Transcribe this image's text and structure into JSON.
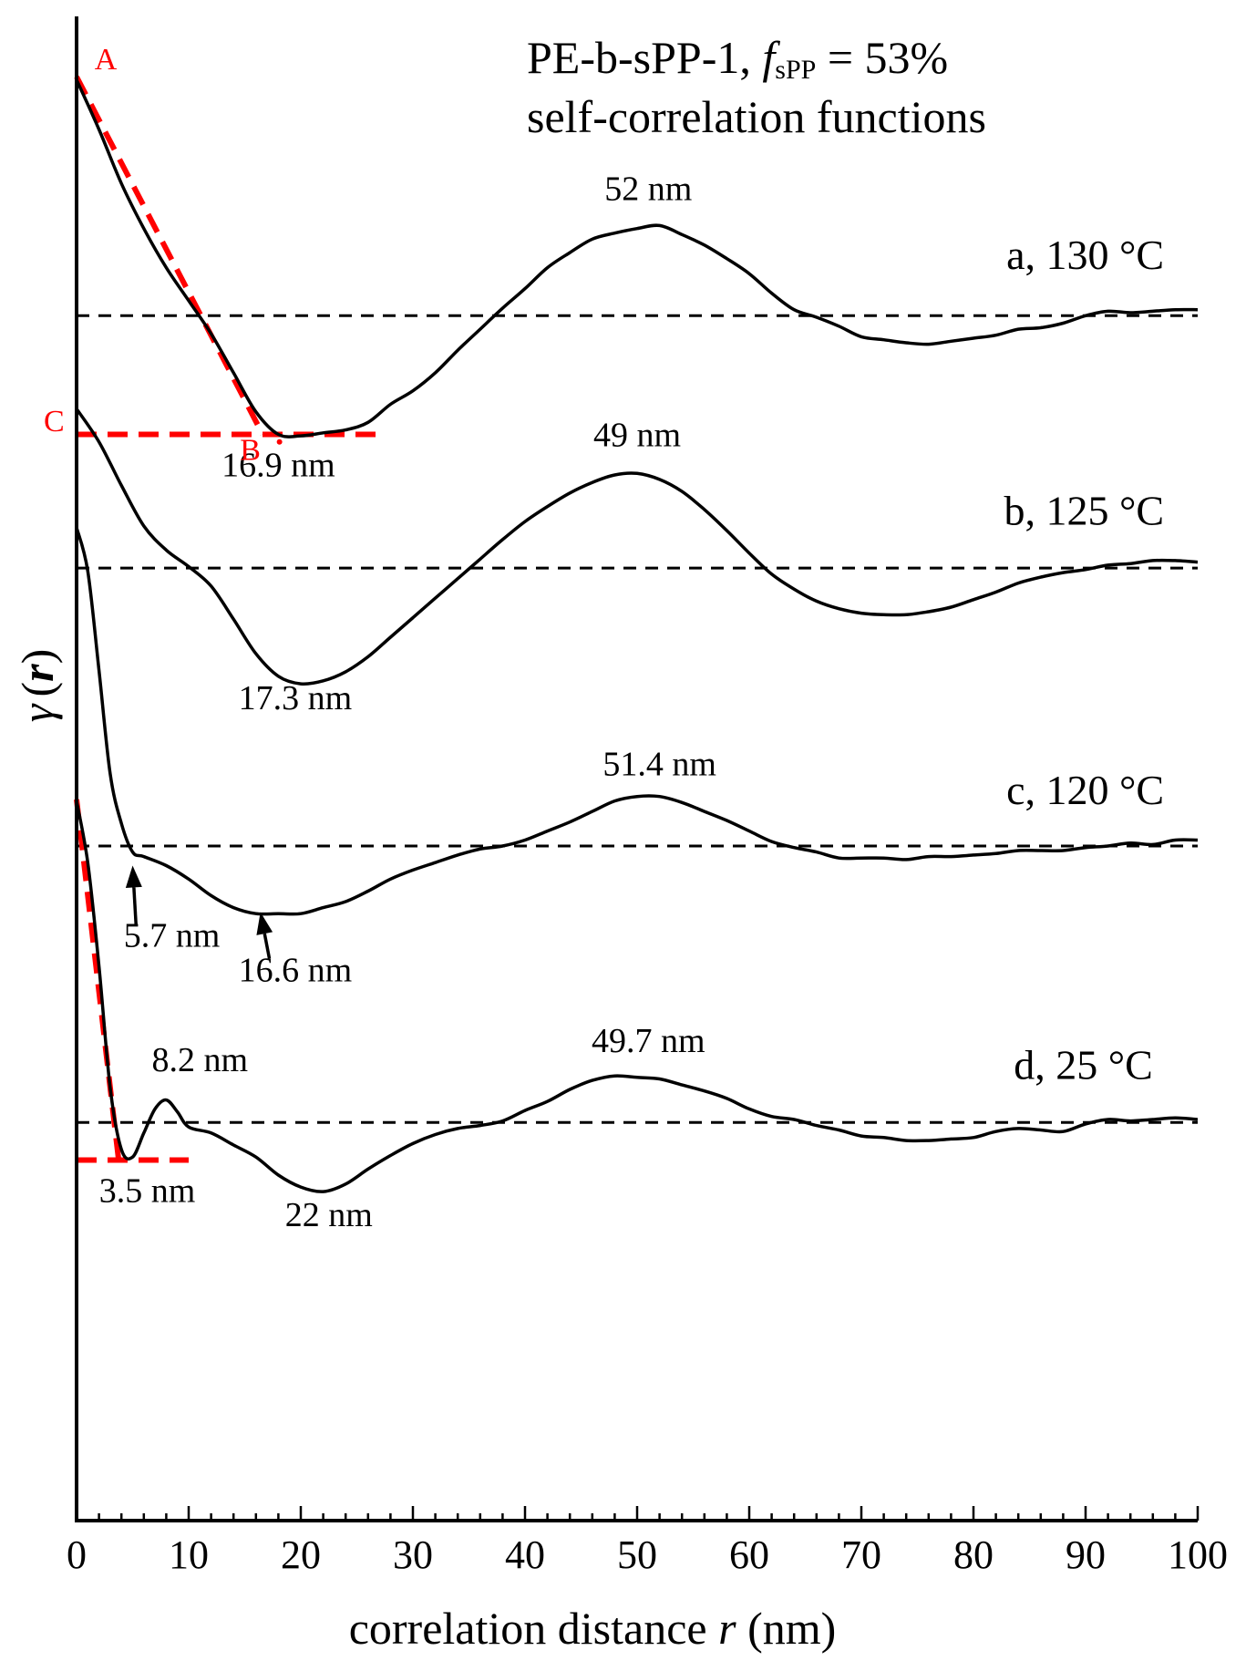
{
  "chart_data": {
    "type": "line",
    "title_line1_prefix": "PE-b-sPP-1, ",
    "title_f": "f",
    "title_sub": "sPP",
    "title_line1_suffix": " = 53%",
    "title_line2": "self-correlation functions",
    "xlabel_prefix": "correlation distance ",
    "xlabel_var": "r",
    "xlabel_suffix": " (nm)",
    "ylabel_gamma": "γ",
    "ylabel_open": "(",
    "ylabel_var": "r",
    "ylabel_close": ")",
    "xlim": [
      0,
      100
    ],
    "ylim": [
      0,
      100
    ],
    "x_ticks": [
      0,
      10,
      20,
      30,
      40,
      50,
      60,
      70,
      80,
      90,
      100
    ],
    "x_tick_labels": [
      "0",
      "10",
      "20",
      "30",
      "40",
      "50",
      "60",
      "70",
      "80",
      "90",
      "100"
    ],
    "series": [
      {
        "name": "a, 130 °C",
        "baseline": 80.2,
        "points": [
          [
            0,
            95.9
          ],
          [
            2,
            92.6
          ],
          [
            4,
            89.0
          ],
          [
            6,
            86.0
          ],
          [
            8,
            83.4
          ],
          [
            10,
            81.2
          ],
          [
            12,
            79.0
          ],
          [
            14,
            76.4
          ],
          [
            16,
            73.8
          ],
          [
            18,
            72.3
          ],
          [
            20,
            72.2
          ],
          [
            22,
            72.4
          ],
          [
            24,
            72.6
          ],
          [
            26,
            73.1
          ],
          [
            28,
            74.3
          ],
          [
            30,
            75.2
          ],
          [
            32,
            76.4
          ],
          [
            34,
            77.9
          ],
          [
            36,
            79.3
          ],
          [
            38,
            80.7
          ],
          [
            40,
            82.0
          ],
          [
            42,
            83.4
          ],
          [
            44,
            84.4
          ],
          [
            46,
            85.3
          ],
          [
            48,
            85.7
          ],
          [
            50,
            86.0
          ],
          [
            52,
            86.2
          ],
          [
            54,
            85.6
          ],
          [
            56,
            84.9
          ],
          [
            58,
            84.0
          ],
          [
            60,
            83.0
          ],
          [
            62,
            81.7
          ],
          [
            64,
            80.6
          ],
          [
            66,
            80.1
          ],
          [
            68,
            79.5
          ],
          [
            70,
            78.8
          ],
          [
            72,
            78.6
          ],
          [
            74,
            78.4
          ],
          [
            76,
            78.3
          ],
          [
            78,
            78.5
          ],
          [
            80,
            78.7
          ],
          [
            82,
            78.9
          ],
          [
            84,
            79.3
          ],
          [
            86,
            79.4
          ],
          [
            88,
            79.7
          ],
          [
            90,
            80.2
          ],
          [
            92,
            80.5
          ],
          [
            94,
            80.4
          ],
          [
            96,
            80.5
          ],
          [
            98,
            80.6
          ],
          [
            100,
            80.6
          ]
        ]
      },
      {
        "name": "b, 125 °C",
        "baseline": 63.4,
        "points": [
          [
            0,
            74.0
          ],
          [
            2,
            71.8
          ],
          [
            4,
            68.9
          ],
          [
            6,
            66.2
          ],
          [
            8,
            64.6
          ],
          [
            10,
            63.5
          ],
          [
            12,
            62.2
          ],
          [
            14,
            60.0
          ],
          [
            16,
            57.7
          ],
          [
            18,
            56.2
          ],
          [
            20,
            55.7
          ],
          [
            22,
            55.9
          ],
          [
            24,
            56.5
          ],
          [
            26,
            57.5
          ],
          [
            28,
            58.8
          ],
          [
            30,
            60.1
          ],
          [
            32,
            61.4
          ],
          [
            34,
            62.7
          ],
          [
            36,
            64.0
          ],
          [
            38,
            65.3
          ],
          [
            40,
            66.5
          ],
          [
            42,
            67.5
          ],
          [
            44,
            68.4
          ],
          [
            46,
            69.1
          ],
          [
            48,
            69.6
          ],
          [
            50,
            69.7
          ],
          [
            52,
            69.3
          ],
          [
            54,
            68.5
          ],
          [
            56,
            67.3
          ],
          [
            58,
            65.9
          ],
          [
            60,
            64.4
          ],
          [
            62,
            63.0
          ],
          [
            64,
            62.0
          ],
          [
            66,
            61.2
          ],
          [
            68,
            60.7
          ],
          [
            70,
            60.4
          ],
          [
            72,
            60.3
          ],
          [
            74,
            60.3
          ],
          [
            76,
            60.5
          ],
          [
            78,
            60.8
          ],
          [
            80,
            61.3
          ],
          [
            82,
            61.8
          ],
          [
            84,
            62.4
          ],
          [
            86,
            62.8
          ],
          [
            88,
            63.1
          ],
          [
            90,
            63.3
          ],
          [
            92,
            63.6
          ],
          [
            94,
            63.7
          ],
          [
            96,
            63.9
          ],
          [
            98,
            63.9
          ],
          [
            100,
            63.8
          ]
        ]
      },
      {
        "name": "c, 120 °C",
        "baseline": 44.9,
        "points": [
          [
            0,
            66.1
          ],
          [
            1,
            63.2
          ],
          [
            2,
            56.6
          ],
          [
            3,
            49.7
          ],
          [
            4,
            46.4
          ],
          [
            5,
            44.5
          ],
          [
            6,
            44.2
          ],
          [
            8,
            43.6
          ],
          [
            10,
            42.7
          ],
          [
            12,
            41.6
          ],
          [
            14,
            40.8
          ],
          [
            16,
            40.4
          ],
          [
            18,
            40.4
          ],
          [
            20,
            40.4
          ],
          [
            22,
            40.8
          ],
          [
            24,
            41.2
          ],
          [
            26,
            41.9
          ],
          [
            28,
            42.7
          ],
          [
            30,
            43.3
          ],
          [
            32,
            43.8
          ],
          [
            34,
            44.3
          ],
          [
            36,
            44.7
          ],
          [
            38,
            44.9
          ],
          [
            40,
            45.3
          ],
          [
            42,
            45.9
          ],
          [
            44,
            46.5
          ],
          [
            46,
            47.2
          ],
          [
            48,
            47.9
          ],
          [
            50,
            48.2
          ],
          [
            52,
            48.2
          ],
          [
            54,
            47.8
          ],
          [
            56,
            47.2
          ],
          [
            58,
            46.6
          ],
          [
            60,
            45.9
          ],
          [
            62,
            45.2
          ],
          [
            64,
            44.8
          ],
          [
            66,
            44.5
          ],
          [
            68,
            44.1
          ],
          [
            70,
            44.1
          ],
          [
            72,
            44.1
          ],
          [
            74,
            44.0
          ],
          [
            76,
            44.2
          ],
          [
            78,
            44.2
          ],
          [
            80,
            44.3
          ],
          [
            82,
            44.4
          ],
          [
            84,
            44.6
          ],
          [
            86,
            44.6
          ],
          [
            88,
            44.6
          ],
          [
            90,
            44.8
          ],
          [
            92,
            44.9
          ],
          [
            94,
            45.1
          ],
          [
            96,
            45.0
          ],
          [
            98,
            45.3
          ],
          [
            100,
            45.3
          ]
        ]
      },
      {
        "name": "d, 25 °C",
        "baseline": 26.5,
        "points": [
          [
            0,
            47.9
          ],
          [
            1,
            43.8
          ],
          [
            2,
            36.9
          ],
          [
            3,
            28.8
          ],
          [
            4,
            24.7
          ],
          [
            5,
            24.2
          ],
          [
            6,
            25.8
          ],
          [
            7,
            27.4
          ],
          [
            8,
            28.0
          ],
          [
            9,
            27.2
          ],
          [
            10,
            26.2
          ],
          [
            12,
            25.8
          ],
          [
            14,
            25.0
          ],
          [
            16,
            24.2
          ],
          [
            18,
            23.0
          ],
          [
            20,
            22.2
          ],
          [
            22,
            21.9
          ],
          [
            24,
            22.4
          ],
          [
            26,
            23.4
          ],
          [
            28,
            24.3
          ],
          [
            30,
            25.1
          ],
          [
            32,
            25.7
          ],
          [
            34,
            26.1
          ],
          [
            36,
            26.3
          ],
          [
            38,
            26.6
          ],
          [
            40,
            27.3
          ],
          [
            42,
            27.9
          ],
          [
            44,
            28.7
          ],
          [
            46,
            29.3
          ],
          [
            48,
            29.6
          ],
          [
            50,
            29.5
          ],
          [
            52,
            29.4
          ],
          [
            54,
            29.0
          ],
          [
            56,
            28.6
          ],
          [
            58,
            28.1
          ],
          [
            60,
            27.4
          ],
          [
            62,
            26.9
          ],
          [
            64,
            26.7
          ],
          [
            66,
            26.3
          ],
          [
            68,
            26.0
          ],
          [
            70,
            25.6
          ],
          [
            72,
            25.5
          ],
          [
            74,
            25.3
          ],
          [
            76,
            25.3
          ],
          [
            78,
            25.4
          ],
          [
            80,
            25.5
          ],
          [
            82,
            25.9
          ],
          [
            84,
            26.1
          ],
          [
            86,
            26.0
          ],
          [
            88,
            25.9
          ],
          [
            90,
            26.4
          ],
          [
            92,
            26.7
          ],
          [
            94,
            26.6
          ],
          [
            96,
            26.7
          ],
          [
            98,
            26.8
          ],
          [
            100,
            26.7
          ]
        ]
      }
    ],
    "series_labels": [
      {
        "text": "a, 130 °C",
        "x": 97,
        "y": 83.3
      },
      {
        "text": "b, 125 °C",
        "x": 97,
        "y": 66.3
      },
      {
        "text": "c, 120 °C",
        "x": 97,
        "y": 47.7
      },
      {
        "text": "d, 25 °C",
        "x": 96,
        "y": 29.4
      }
    ],
    "annotations": [
      {
        "text": "52 nm",
        "x": 51,
        "y": 87.9
      },
      {
        "text": "16.9 nm",
        "x": 18,
        "y": 69.5
      },
      {
        "text": "49 nm",
        "x": 50,
        "y": 71.5
      },
      {
        "text": "17.3 nm",
        "x": 19.5,
        "y": 54.0
      },
      {
        "text": "51.4 nm",
        "x": 52,
        "y": 49.6
      },
      {
        "text": "5.7 nm",
        "x": 8.5,
        "y": 38.2
      },
      {
        "text": "16.6 nm",
        "x": 19.5,
        "y": 35.9
      },
      {
        "text": "49.7 nm",
        "x": 51,
        "y": 31.2
      },
      {
        "text": "8.2 nm",
        "x": 11,
        "y": 29.9
      },
      {
        "text": "3.5 nm",
        "x": 6.3,
        "y": 21.2
      },
      {
        "text": "22 nm",
        "x": 22.5,
        "y": 19.6
      }
    ],
    "markers": [
      {
        "text": "A",
        "x": 2.6,
        "y": 96.6
      },
      {
        "text": "B",
        "x": 15.5,
        "y": 70.6
      },
      {
        "text": "C",
        "x": -2,
        "y": 72.5
      }
    ],
    "arrows": [
      {
        "from": [
          5.3,
          39.7
        ],
        "to": [
          5.0,
          43.6
        ]
      },
      {
        "from": [
          17.2,
          37.4
        ],
        "to": [
          16.4,
          40.5
        ]
      }
    ],
    "tangent_lines": [
      {
        "points": [
          [
            0,
            96.1
          ],
          [
            16.6,
            72.3
          ]
        ],
        "color": "#ff0000"
      },
      {
        "points": [
          [
            0,
            72.3
          ],
          [
            27,
            72.3
          ]
        ],
        "color": "#ff0000"
      },
      {
        "points": [
          [
            0,
            48.0
          ],
          [
            3.8,
            23.7
          ]
        ],
        "color": "#ff0000"
      },
      {
        "points": [
          [
            0,
            24.0
          ],
          [
            10,
            24.0
          ]
        ],
        "color": "#ff0000"
      }
    ],
    "colors": {
      "curve": "#000000",
      "baseline": "#000000",
      "tangent": "#ff0000",
      "marker": "#ff0000"
    }
  }
}
